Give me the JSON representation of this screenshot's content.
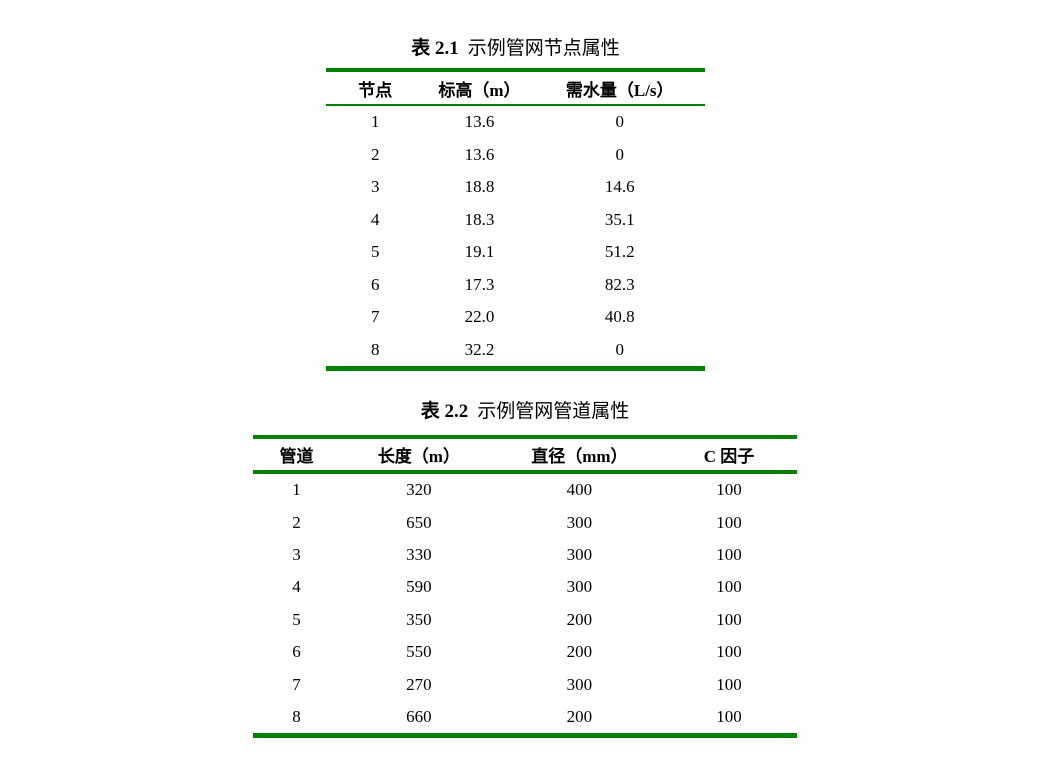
{
  "page": {
    "background_color": "#ffffff",
    "rule_color": "#008000",
    "text_color": "#000000"
  },
  "table1": {
    "title_number": "表 2.1",
    "title_text": "示例管网节点属性",
    "headers": [
      "节点",
      "标高（m）",
      "需水量（L/s）"
    ],
    "rows": [
      [
        "1",
        "13.6",
        "0"
      ],
      [
        "2",
        "13.6",
        "0"
      ],
      [
        "3",
        "18.8",
        "14.6"
      ],
      [
        "4",
        "18.3",
        "35.1"
      ],
      [
        "5",
        "19.1",
        "51.2"
      ],
      [
        "6",
        "17.3",
        "82.3"
      ],
      [
        "7",
        "22.0",
        "40.8"
      ],
      [
        "8",
        "32.2",
        "0"
      ]
    ]
  },
  "table2": {
    "title_number": "表 2.2",
    "title_text": "示例管网管道属性",
    "headers": [
      "管道",
      "长度（m）",
      "直径（mm）",
      "C 因子"
    ],
    "rows": [
      [
        "1",
        "320",
        "400",
        "100"
      ],
      [
        "2",
        "650",
        "300",
        "100"
      ],
      [
        "3",
        "330",
        "300",
        "100"
      ],
      [
        "4",
        "590",
        "300",
        "100"
      ],
      [
        "5",
        "350",
        "200",
        "100"
      ],
      [
        "6",
        "550",
        "200",
        "100"
      ],
      [
        "7",
        "270",
        "300",
        "100"
      ],
      [
        "8",
        "660",
        "200",
        "100"
      ]
    ]
  },
  "chart_data": [
    {
      "type": "table",
      "title": "表 2.1 示例管网节点属性",
      "columns": [
        "节点",
        "标高（m）",
        "需水量（L/s）"
      ],
      "rows": [
        [
          1,
          13.6,
          0
        ],
        [
          2,
          13.6,
          0
        ],
        [
          3,
          18.8,
          14.6
        ],
        [
          4,
          18.3,
          35.1
        ],
        [
          5,
          19.1,
          51.2
        ],
        [
          6,
          17.3,
          82.3
        ],
        [
          7,
          22.0,
          40.8
        ],
        [
          8,
          32.2,
          0
        ]
      ]
    },
    {
      "type": "table",
      "title": "表 2.2 示例管网管道属性",
      "columns": [
        "管道",
        "长度（m）",
        "直径（mm）",
        "C 因子"
      ],
      "rows": [
        [
          1,
          320,
          400,
          100
        ],
        [
          2,
          650,
          300,
          100
        ],
        [
          3,
          330,
          300,
          100
        ],
        [
          4,
          590,
          300,
          100
        ],
        [
          5,
          350,
          200,
          100
        ],
        [
          6,
          550,
          200,
          100
        ],
        [
          7,
          270,
          300,
          100
        ],
        [
          8,
          660,
          200,
          100
        ]
      ]
    }
  ]
}
